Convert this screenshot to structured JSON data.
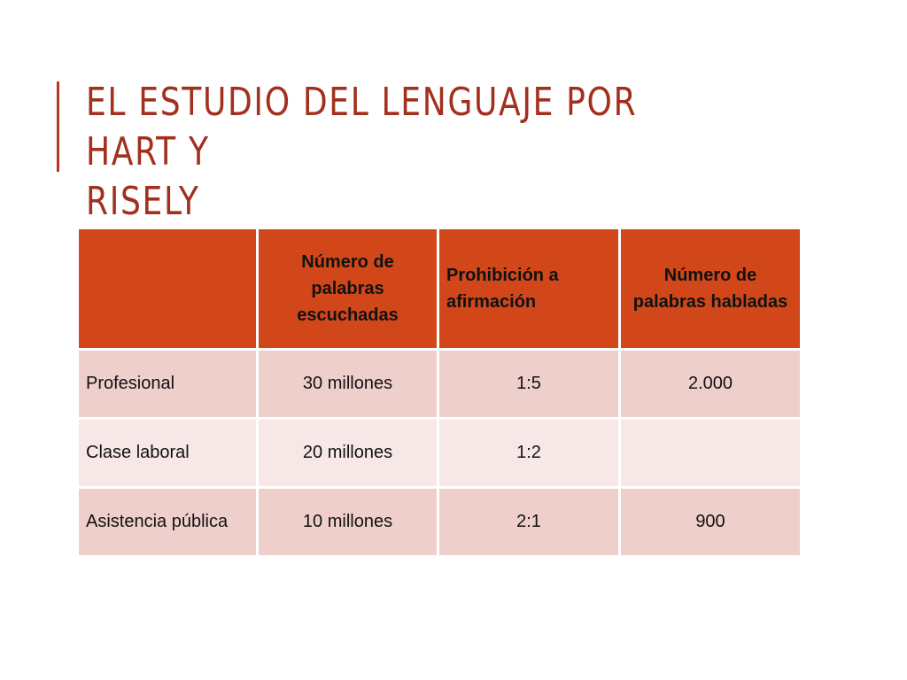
{
  "title": "EL ESTUDIO DEL LENGUAJE POR HART Y\nRISELY",
  "table": {
    "headers": [
      "",
      "Número de palabras escuchadas",
      "Prohibición a afirmación",
      "Número de palabras habladas"
    ],
    "rows": [
      [
        "Profesional",
        "30 millones",
        "1:5",
        "2.000"
      ],
      [
        "Clase laboral",
        "20 millones",
        "1:2",
        ""
      ],
      [
        "Asistencia pública",
        "10 millones",
        "2:1",
        "900"
      ]
    ]
  },
  "colors": {
    "accent": "#a2301d",
    "header_bg": "#d14719",
    "row_dark": "#efcfcc",
    "row_light": "#f7e8e7"
  }
}
